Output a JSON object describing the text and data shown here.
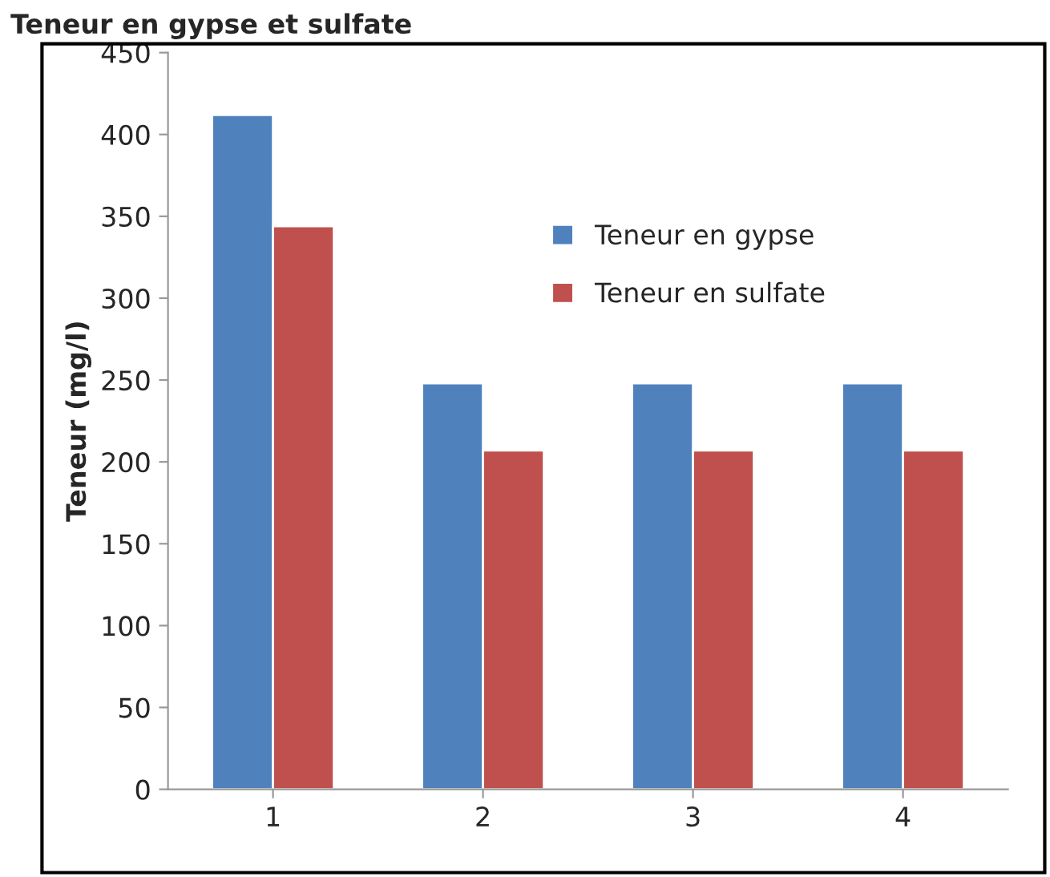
{
  "chart_data": {
    "type": "bar",
    "title": "Teneur en gypse et sulfate",
    "ylabel": "Teneur (mg/l)",
    "categories": [
      "1",
      "2",
      "3",
      "4"
    ],
    "series": [
      {
        "name": "Teneur en gypse",
        "color": "#4f81bd",
        "values": [
          412,
          248,
          248,
          248
        ]
      },
      {
        "name": "Teneur en sulfate",
        "color": "#c0504d",
        "values": [
          344,
          207,
          207,
          207
        ]
      }
    ],
    "ylim": [
      0,
      450
    ],
    "yticks": [
      0,
      50,
      100,
      150,
      200,
      250,
      300,
      350,
      400,
      450
    ],
    "grid": false,
    "legend": "top"
  }
}
